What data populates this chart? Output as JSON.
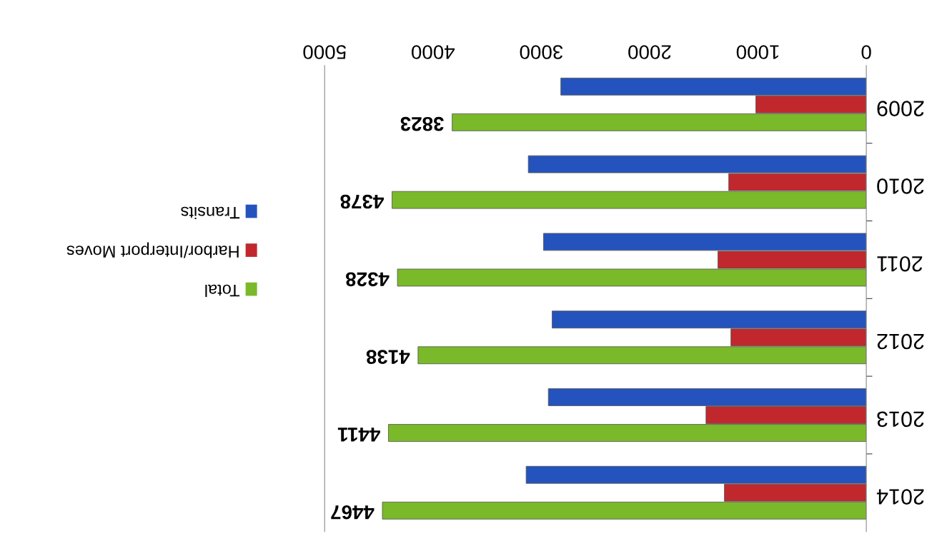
{
  "chart_data": {
    "type": "bar",
    "orientation": "horizontal",
    "categories": [
      "2009",
      "2010",
      "2011",
      "2012",
      "2013",
      "2014"
    ],
    "series": [
      {
        "name": "Transits",
        "color": "#2553bd",
        "values": [
          2820,
          3120,
          2980,
          2900,
          2935,
          3140
        ]
      },
      {
        "name": "Harbor/Interport Moves",
        "color": "#c0282d",
        "values": [
          1020,
          1270,
          1370,
          1250,
          1480,
          1310
        ]
      },
      {
        "name": "Total",
        "color": "#7ab929",
        "values": [
          3823,
          4378,
          4328,
          4138,
          4411,
          4467
        ],
        "value_labels": [
          "3823",
          "4378",
          "4328",
          "4138",
          "4411",
          "4467"
        ]
      }
    ],
    "xlim": [
      5000,
      0
    ],
    "xticks": [
      0,
      1000,
      2000,
      3000,
      4000,
      5000
    ],
    "grid": false,
    "legend": "left"
  }
}
